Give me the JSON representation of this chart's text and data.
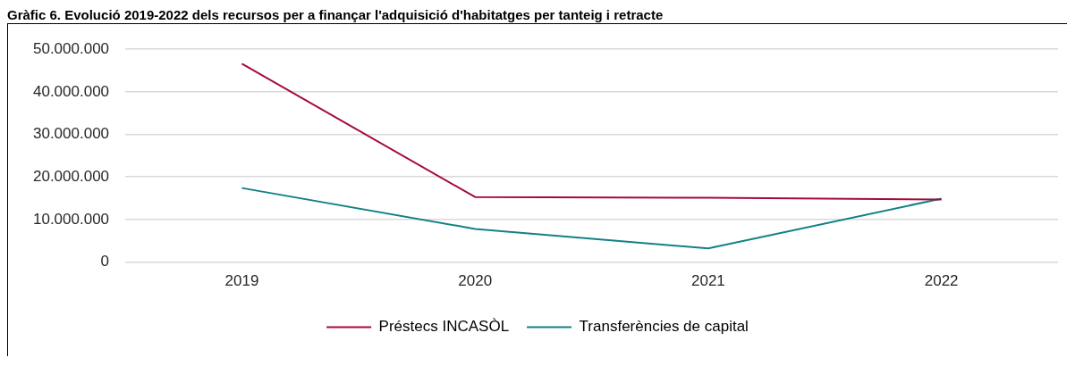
{
  "chart_data": {
    "type": "line",
    "title": "Gràfic 6. Evolució 2019-2022 dels recursos per a finançar l'adquisició d'habitatges per tanteig i retracte",
    "categories": [
      "2019",
      "2020",
      "2021",
      "2022"
    ],
    "series": [
      {
        "name": "Préstecs INCASÒL",
        "color": "#a50a3c",
        "values": [
          46600000,
          15300000,
          15100000,
          14700000
        ]
      },
      {
        "name": "Transferències de capital",
        "color": "#138185",
        "values": [
          17400000,
          7800000,
          3200000,
          14900000
        ]
      }
    ],
    "ylim": [
      0,
      50000000
    ],
    "yticks": [
      {
        "value": 0,
        "label": "0"
      },
      {
        "value": 10000000,
        "label": "10.000.000"
      },
      {
        "value": 20000000,
        "label": "20.000.000"
      },
      {
        "value": 30000000,
        "label": "30.000.000"
      },
      {
        "value": 40000000,
        "label": "40.000.000"
      },
      {
        "value": 50000000,
        "label": "50.000.000"
      }
    ],
    "grid": "y",
    "legend": "bottom",
    "marker": "none",
    "line_style": "solid"
  }
}
